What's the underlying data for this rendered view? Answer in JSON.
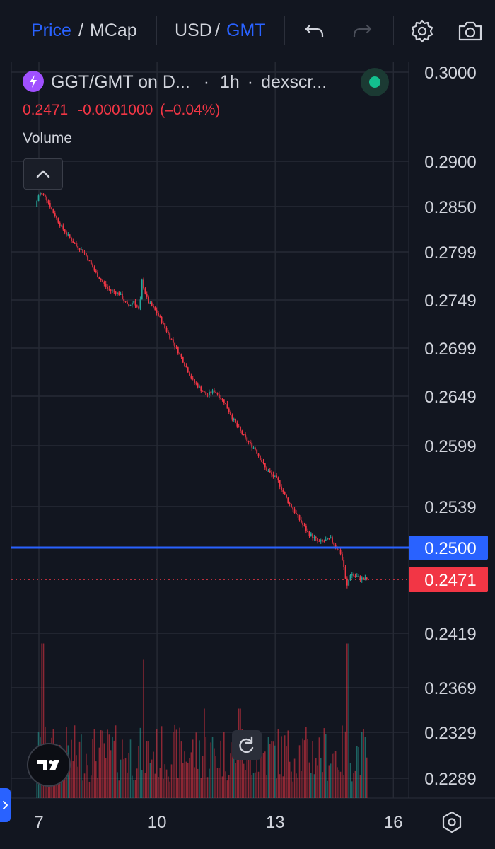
{
  "toolbar": {
    "price_label": "Price",
    "slash1": "/",
    "mcap_label": "MCap",
    "usd_label": "USD",
    "slash2": "/",
    "gmt_label": "GMT"
  },
  "legend": {
    "title": "GGT/GMT on D...",
    "sep1": "·",
    "interval": "1h",
    "sep2": "·",
    "source": "dexscr...",
    "last_price": "0.2471",
    "change": "-0.0001000",
    "change_pct": "(–0.04%)",
    "volume_label": "Volume"
  },
  "colors": {
    "up": "#26a69a",
    "down": "#f23645",
    "accent": "#2962ff",
    "grid": "#262a35",
    "text": "#d1d4dc",
    "background": "#121620"
  },
  "icons": [
    "undo-icon",
    "redo-icon",
    "settings-icon",
    "camera-icon",
    "chevron-up-icon",
    "tradingview-logo-icon",
    "reset-icon",
    "chevron-right-icon",
    "gear-icon"
  ],
  "chart_data": {
    "type": "candlestick",
    "symbol": "GGT/GMT",
    "interval": "1h",
    "y_ticks": [
      "0.3000",
      "0.2900",
      "0.2850",
      "0.2799",
      "0.2749",
      "0.2699",
      "0.2649",
      "0.2599",
      "0.2539",
      "0.2419",
      "0.2369",
      "0.2329",
      "0.2289"
    ],
    "x_ticks": [
      "7",
      "10",
      "13",
      "16"
    ],
    "horizontal_line": {
      "value": 0.25,
      "label": "0.2500",
      "color": "#2962ff"
    },
    "last_price_marker": {
      "value": 0.2471,
      "label": "0.2471",
      "color": "#f23645"
    },
    "price_path": [
      [
        6.95,
        0.285
      ],
      [
        7.05,
        0.2865
      ],
      [
        7.2,
        0.2862
      ],
      [
        7.35,
        0.2848
      ],
      [
        7.6,
        0.2828
      ],
      [
        7.9,
        0.281
      ],
      [
        8.2,
        0.2798
      ],
      [
        8.5,
        0.2776
      ],
      [
        8.8,
        0.276
      ],
      [
        9.1,
        0.2755
      ],
      [
        9.3,
        0.2742
      ],
      [
        9.45,
        0.2748
      ],
      [
        9.6,
        0.2737
      ],
      [
        9.65,
        0.277
      ],
      [
        9.8,
        0.2748
      ],
      [
        10.05,
        0.2735
      ],
      [
        10.35,
        0.2712
      ],
      [
        10.65,
        0.269
      ],
      [
        10.95,
        0.2665
      ],
      [
        11.3,
        0.265
      ],
      [
        11.5,
        0.2655
      ],
      [
        11.75,
        0.2643
      ],
      [
        12.05,
        0.262
      ],
      [
        12.3,
        0.2605
      ],
      [
        12.55,
        0.2595
      ],
      [
        12.8,
        0.2576
      ],
      [
        13.1,
        0.2565
      ],
      [
        13.35,
        0.2545
      ],
      [
        13.6,
        0.253
      ],
      [
        13.85,
        0.2515
      ],
      [
        14.15,
        0.2505
      ],
      [
        14.45,
        0.2508
      ],
      [
        14.7,
        0.2495
      ],
      [
        14.8,
        0.248
      ],
      [
        14.85,
        0.2462
      ],
      [
        14.95,
        0.2476
      ],
      [
        15.2,
        0.2472
      ],
      [
        15.35,
        0.2471
      ]
    ]
  }
}
